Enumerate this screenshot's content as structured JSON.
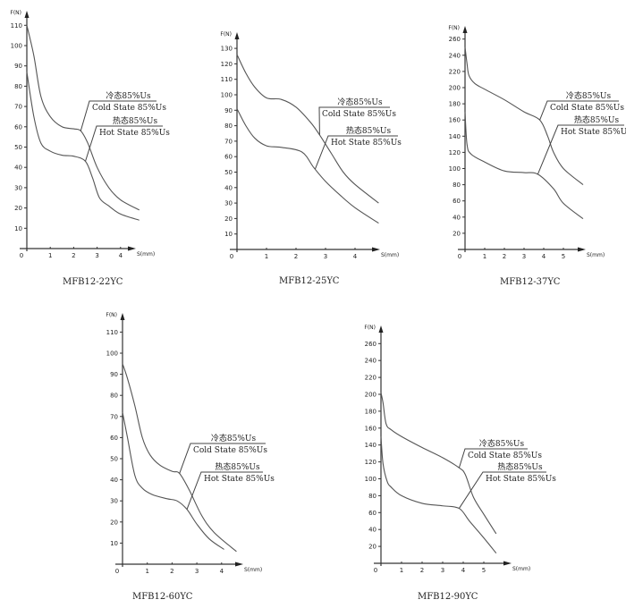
{
  "chart_data": [
    {
      "type": "line",
      "title": "MFB12-22YC",
      "xlabel": "S(mm)",
      "ylabel": "F(N)",
      "xlim": [
        0,
        5
      ],
      "ylim": [
        0,
        110
      ],
      "xticks": [
        "0",
        "1",
        "2",
        "3",
        "4"
      ],
      "yticks": [
        10,
        20,
        30,
        40,
        50,
        60,
        70,
        80,
        90,
        100,
        110
      ],
      "grid": false,
      "legend_labels": {
        "cold_cn": "冷态85%Us",
        "cold_en": "Cold State 85%Us",
        "hot_cn": "热态85%Us",
        "hot_en": "Hot State 85%Us"
      },
      "series": [
        {
          "name": "Cold State 85%Us",
          "x": [
            0,
            0.3,
            0.6,
            1,
            1.5,
            2,
            2.3,
            2.6,
            3,
            3.5,
            4,
            4.8
          ],
          "y": [
            110,
            95,
            75,
            65,
            60,
            59,
            58,
            52,
            40,
            30,
            24,
            19
          ]
        },
        {
          "name": "Hot State 85%Us",
          "x": [
            0,
            0.3,
            0.6,
            1,
            1.5,
            2,
            2.5,
            2.8,
            3.1,
            3.5,
            4,
            4.8
          ],
          "y": [
            87,
            65,
            52,
            48,
            46,
            45.5,
            43,
            35,
            25,
            21,
            17,
            14
          ]
        }
      ]
    },
    {
      "type": "line",
      "title": "MFB12-25YC",
      "xlabel": "S(mm)",
      "ylabel": "F(N)",
      "xlim": [
        0,
        5
      ],
      "ylim": [
        0,
        130
      ],
      "xticks": [
        "0",
        "1",
        "2",
        "3",
        "4"
      ],
      "yticks": [
        10,
        20,
        30,
        40,
        50,
        60,
        70,
        80,
        90,
        100,
        110,
        120,
        130
      ],
      "grid": false,
      "legend_labels": {
        "cold_cn": "冷态85%Us",
        "cold_en": "Cold State 85%Us",
        "hot_cn": "热态85%Us",
        "hot_en": "Hot State 85%Us"
      },
      "series": [
        {
          "name": "Cold State 85%Us",
          "x": [
            0,
            0.3,
            0.6,
            1,
            1.5,
            2,
            2.5,
            2.8,
            3.2,
            3.6,
            4,
            4.8
          ],
          "y": [
            126,
            114,
            105,
            98,
            97,
            92,
            82,
            74,
            62,
            50,
            42,
            30
          ]
        },
        {
          "name": "Hot State 85%Us",
          "x": [
            0,
            0.3,
            0.6,
            1,
            1.5,
            2.2,
            2.6,
            3,
            3.5,
            4,
            4.8
          ],
          "y": [
            91,
            80,
            72,
            67,
            66,
            63,
            53,
            44,
            35,
            27,
            17
          ]
        }
      ]
    },
    {
      "type": "line",
      "title": "MFB12-37YC",
      "xlabel": "S(mm)",
      "ylabel": "F(N)",
      "xlim": [
        0,
        6
      ],
      "ylim": [
        0,
        260
      ],
      "xticks": [
        "0",
        "1",
        "2",
        "3",
        "4",
        "5"
      ],
      "yticks": [
        20,
        40,
        60,
        80,
        100,
        120,
        140,
        160,
        180,
        200,
        220,
        240,
        260
      ],
      "grid": false,
      "legend_labels": {
        "cold_cn": "冷态85%Us",
        "cold_en": "Cold State 85%Us",
        "hot_cn": "热态85%Us",
        "hot_en": "Hot State 85%Us"
      },
      "series": [
        {
          "name": "Cold State 85%Us",
          "x": [
            0,
            0.1,
            0.2,
            0.5,
            1,
            2,
            3,
            3.8,
            4.2,
            4.5,
            5,
            6
          ],
          "y": [
            250,
            230,
            215,
            205,
            198,
            185,
            170,
            160,
            140,
            120,
            100,
            80
          ]
        },
        {
          "name": "Hot State 85%Us",
          "x": [
            0,
            0.1,
            0.3,
            1,
            2,
            3,
            3.7,
            4.5,
            5,
            6
          ],
          "y": [
            170,
            130,
            118,
            108,
            97,
            95,
            93,
            75,
            57,
            38
          ]
        }
      ]
    },
    {
      "type": "line",
      "title": "MFB12-60YC",
      "xlabel": "S(mm)",
      "ylabel": "F(N)",
      "xlim": [
        0,
        5
      ],
      "ylim": [
        0,
        110
      ],
      "xticks": [
        "0",
        "1",
        "2",
        "3",
        "4"
      ],
      "yticks": [
        10,
        20,
        30,
        40,
        50,
        60,
        70,
        80,
        90,
        100,
        110
      ],
      "grid": false,
      "legend_labels": {
        "cold_cn": "冷态85%Us",
        "cold_en": "Cold State 85%Us",
        "hot_cn": "热态85%Us",
        "hot_en": "Hot State 85%Us"
      },
      "series": [
        {
          "name": "Cold State 85%Us",
          "x": [
            0,
            0.2,
            0.5,
            0.8,
            1.1,
            1.5,
            2,
            2.3,
            2.7,
            3.2,
            3.7,
            4.6
          ],
          "y": [
            95,
            88,
            75,
            60,
            52,
            47,
            44,
            43,
            35,
            23,
            15,
            6
          ]
        },
        {
          "name": "Hot State 85%Us",
          "x": [
            0,
            0.2,
            0.5,
            0.8,
            1.2,
            1.8,
            2.2,
            2.6,
            3,
            3.5,
            4.1
          ],
          "y": [
            72,
            60,
            42,
            36,
            33,
            31,
            30,
            26,
            19,
            12,
            7
          ]
        }
      ]
    },
    {
      "type": "line",
      "title": "MFB12-90YC",
      "xlabel": "S(mm)",
      "ylabel": "F(N)",
      "xlim": [
        0,
        6
      ],
      "ylim": [
        0,
        260
      ],
      "xticks": [
        "0",
        "1",
        "2",
        "3",
        "4",
        "5"
      ],
      "yticks": [
        20,
        40,
        60,
        80,
        100,
        120,
        140,
        160,
        180,
        200,
        220,
        240,
        260
      ],
      "grid": false,
      "legend_labels": {
        "cold_cn": "冷态85%Us",
        "cold_en": "Cold State 85%Us",
        "hot_cn": "热态85%Us",
        "hot_en": "Hot State 85%Us"
      },
      "series": [
        {
          "name": "Cold State 85%Us",
          "x": [
            0,
            0.1,
            0.25,
            0.5,
            1,
            2,
            3,
            3.8,
            4.1,
            4.5,
            5,
            5.6
          ],
          "y": [
            202,
            190,
            165,
            158,
            150,
            137,
            125,
            113,
            105,
            78,
            58,
            35
          ]
        },
        {
          "name": "Hot State 85%Us",
          "x": [
            0,
            0.1,
            0.3,
            0.5,
            1,
            2,
            3,
            3.8,
            4.3,
            5,
            5.6
          ],
          "y": [
            150,
            118,
            97,
            90,
            80,
            71,
            68,
            65,
            50,
            30,
            12
          ]
        }
      ]
    }
  ]
}
